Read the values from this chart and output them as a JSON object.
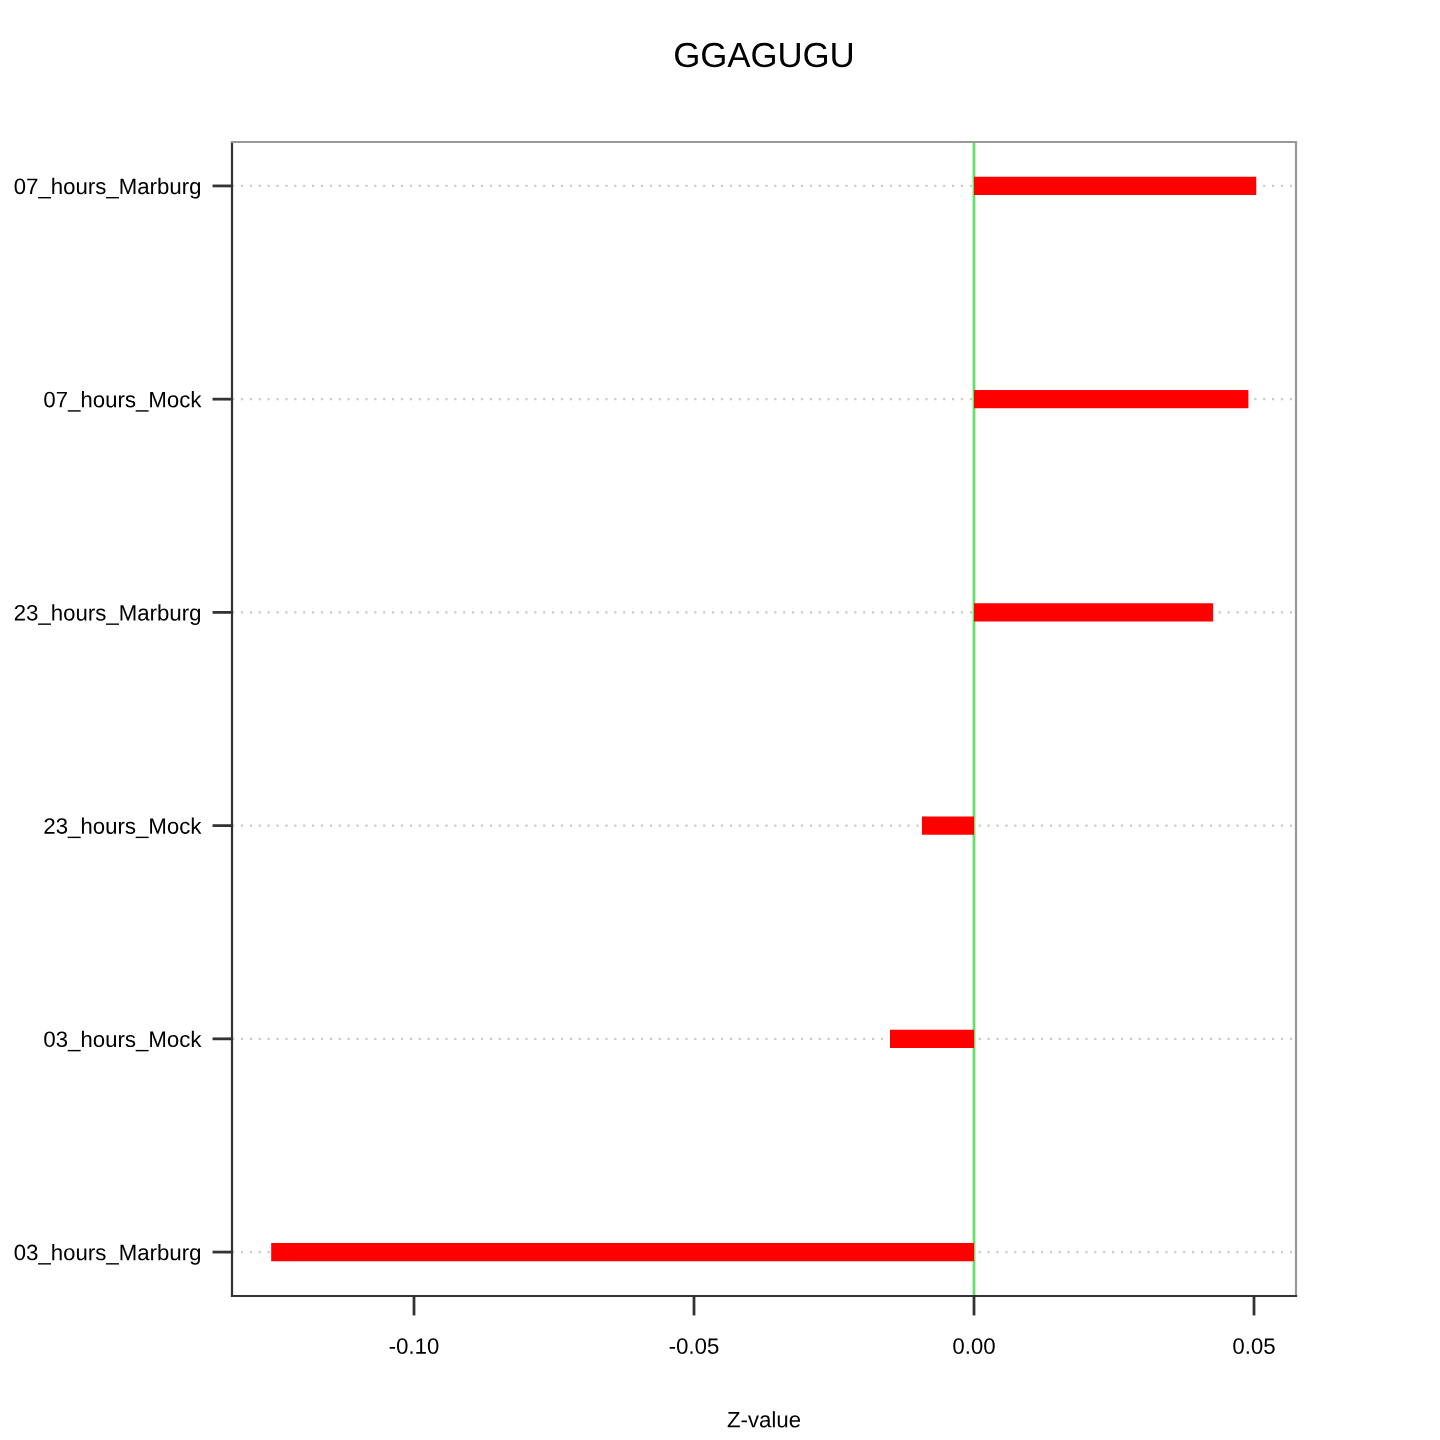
{
  "chart_data": {
    "type": "bar",
    "orientation": "horizontal",
    "title": "GGAGUGU",
    "xlabel": "Z-value",
    "categories": [
      "07_hours_Marburg",
      "07_hours_Mock",
      "23_hours_Marburg",
      "23_hours_Mock",
      "03_hours_Mock",
      "03_hours_Marburg"
    ],
    "values": [
      0.0504,
      0.049,
      0.0427,
      -0.0093,
      -0.015,
      -0.1255
    ],
    "color": "#ff0000",
    "xlim": [
      -0.1325,
      0.0575
    ],
    "xticks": [
      {
        "value": -0.1,
        "label": "-0.10"
      },
      {
        "value": -0.05,
        "label": "-0.05"
      },
      {
        "value": 0,
        "label": "0.00"
      },
      {
        "value": 0.05,
        "label": "0.05"
      }
    ],
    "grid": "y",
    "ref_lines": [
      {
        "axis": "x",
        "value": 0,
        "color": "#66e066"
      }
    ]
  }
}
